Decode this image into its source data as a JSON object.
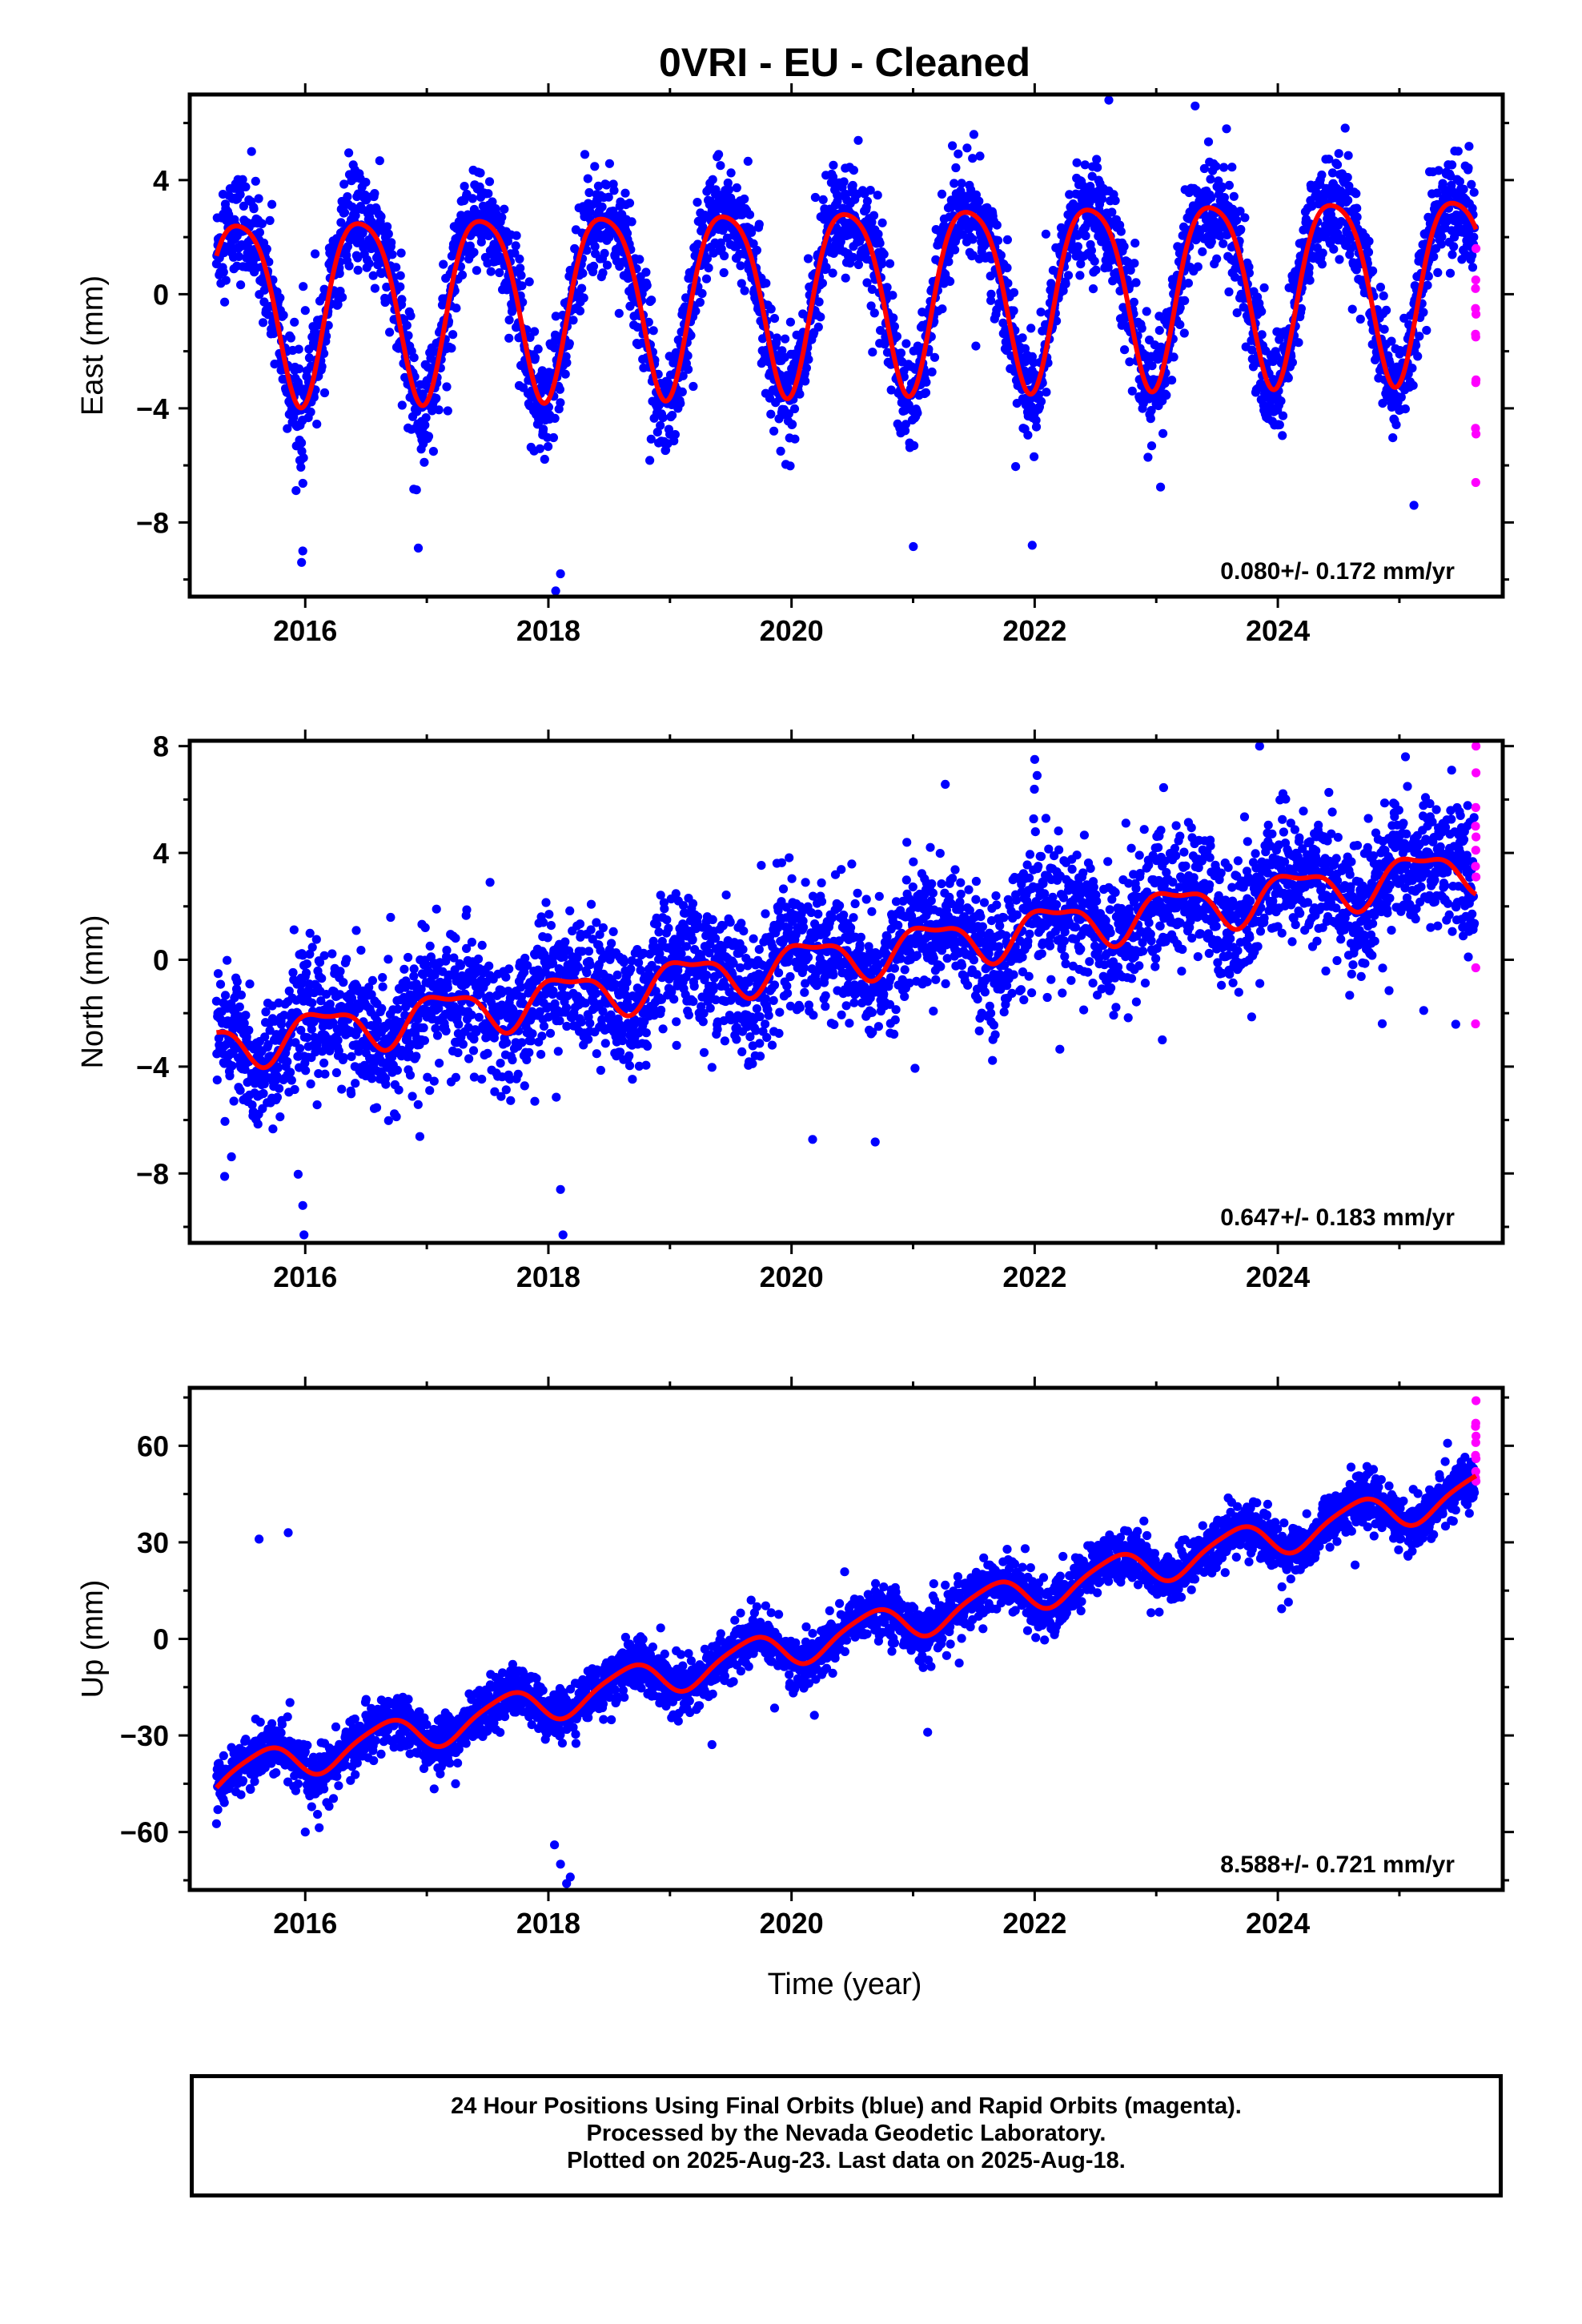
{
  "title": "0VRI  - EU - Cleaned",
  "xlabel": "Time (year)",
  "footer": {
    "line1": "24 Hour Positions Using Final Orbits (blue) and Rapid Orbits (magenta).",
    "line2": "Processed by the Nevada Geodetic Laboratory.",
    "line3": "Plotted on 2025-Aug-23. Last data on 2025-Aug-18."
  },
  "colors": {
    "final": "#0000ff",
    "rapid": "#ff00ff",
    "model": "#ff0000",
    "frame": "#000000"
  },
  "chart_data": [
    {
      "type": "scatter",
      "ylabel": "East (mm)",
      "rate": "0.080+/- 0.172 mm/yr",
      "xlim": [
        2015.05,
        2025.85
      ],
      "ylim": [
        -10.6,
        7.0
      ],
      "xticks": [
        "2016",
        "2018",
        "2020",
        "2022",
        "2024"
      ],
      "yticks": [
        "4",
        "0",
        "−4",
        "−8"
      ],
      "grid": false,
      "x_start": 2015.27,
      "x_end_final": 2025.62,
      "x_end": 2025.63,
      "model": {
        "offset": -0.3,
        "trend": 0.08,
        "annual_amp": 3.2,
        "annual_phase": 2015.21,
        "semi_amp": 0.55,
        "semi_phase": 2015.1
      },
      "scatter_sd": 0.9,
      "series": [
        {
          "name": "Final Orbits",
          "color": "blue",
          "approx_points": 3700
        },
        {
          "name": "Rapid Orbits",
          "color": "magenta",
          "values": [
            1.6,
            0.5,
            -0.5,
            -0.7,
            -1.5,
            -1.4,
            -3.0,
            -3.1,
            -4.7,
            -4.9,
            -6.6,
            0.2
          ]
        },
        {
          "name": "Model",
          "color": "red"
        }
      ],
      "outliers": [
        [
          2015.97,
          -9.4
        ],
        [
          2015.98,
          -9.0
        ],
        [
          2016.93,
          -8.9
        ],
        [
          2018.06,
          -10.4
        ],
        [
          2018.1,
          -9.8
        ],
        [
          2021.98,
          -8.8
        ],
        [
          2022.61,
          6.8
        ],
        [
          2023.32,
          6.6
        ],
        [
          2025.12,
          -7.4
        ],
        [
          2018.3,
          4.9
        ],
        [
          2019.4,
          4.9
        ],
        [
          2021.5,
          5.6
        ]
      ]
    },
    {
      "type": "scatter",
      "ylabel": "North (mm)",
      "rate": "0.647+/- 0.183 mm/yr",
      "xlim": [
        2015.05,
        2025.85
      ],
      "ylim": [
        -10.6,
        8.2
      ],
      "xticks": [
        "2016",
        "2018",
        "2020",
        "2022",
        "2024"
      ],
      "yticks": [
        "8",
        "4",
        "0",
        "−4",
        "−8"
      ],
      "grid": false,
      "x_start": 2015.27,
      "x_end_final": 2025.62,
      "x_end": 2025.63,
      "model": {
        "offset": -3.2,
        "trend": 0.647,
        "annual_amp": 0.8,
        "annual_phase": 2015.9,
        "semi_amp": 0.3,
        "semi_phase": 2015.3
      },
      "scatter_sd": 1.2,
      "series": [
        {
          "name": "Final Orbits",
          "color": "blue",
          "approx_points": 3700
        },
        {
          "name": "Rapid Orbits",
          "color": "magenta",
          "values": [
            8.0,
            5.7,
            5.0,
            4.6,
            4.1,
            3.5,
            3.1,
            -0.3,
            -2.4,
            7.0
          ]
        },
        {
          "name": "Model",
          "color": "red"
        }
      ],
      "outliers": [
        [
          2015.99,
          -10.3
        ],
        [
          2015.98,
          -9.2
        ],
        [
          2018.12,
          -10.3
        ],
        [
          2018.1,
          -8.6
        ],
        [
          2022.0,
          7.5
        ],
        [
          2022.02,
          6.9
        ],
        [
          2023.85,
          8.0
        ],
        [
          2025.05,
          7.6
        ],
        [
          2025.2,
          -1.9
        ],
        [
          2023.05,
          -3.0
        ],
        [
          2017.52,
          2.9
        ]
      ]
    },
    {
      "type": "scatter",
      "ylabel": "Up (mm)",
      "rate": "8.588+/- 0.721 mm/yr",
      "xlim": [
        2015.05,
        2025.85
      ],
      "ylim": [
        -78,
        78
      ],
      "xticks": [
        "2016",
        "2018",
        "2020",
        "2022",
        "2024"
      ],
      "yticks": [
        "60",
        "30",
        "0",
        "−30",
        "−60"
      ],
      "grid": false,
      "x_start": 2015.27,
      "x_end_final": 2025.62,
      "x_end": 2025.63,
      "model": {
        "offset": -43,
        "trend": 8.588,
        "annual_amp": 5.5,
        "annual_phase": 2015.4,
        "semi_amp": 1.0,
        "semi_phase": 2015.2
      },
      "scatter_sd": 4.0,
      "series": [
        {
          "name": "Final Orbits",
          "color": "blue",
          "approx_points": 3700
        },
        {
          "name": "Rapid Orbits",
          "color": "magenta",
          "values": [
            74,
            67,
            66,
            63,
            61,
            57,
            56,
            52,
            50,
            49
          ]
        },
        {
          "name": "Model",
          "color": "red"
        }
      ],
      "outliers": [
        [
          2015.62,
          31
        ],
        [
          2015.86,
          33
        ],
        [
          2018.05,
          -64
        ],
        [
          2018.1,
          -70
        ],
        [
          2018.15,
          -76
        ],
        [
          2018.18,
          -74
        ],
        [
          2021.12,
          -29
        ],
        [
          2016.0,
          -60
        ]
      ]
    }
  ]
}
